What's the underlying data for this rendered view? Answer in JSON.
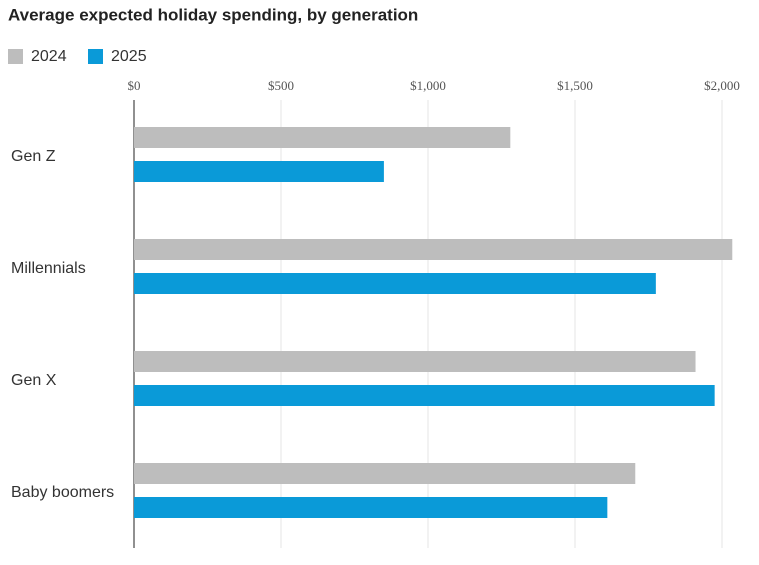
{
  "chart_data": {
    "type": "bar",
    "orientation": "horizontal",
    "title": "Average expected holiday spending, by generation",
    "categories": [
      "Gen Z",
      "Millennials",
      "Gen X",
      "Baby boomers"
    ],
    "series": [
      {
        "name": "2024",
        "color": "#bdbdbd",
        "values": [
          1280,
          2035,
          1910,
          1705
        ]
      },
      {
        "name": "2025",
        "color": "#0a9ad8",
        "values": [
          850,
          1775,
          1975,
          1610
        ]
      }
    ],
    "xlim": [
      0,
      2100
    ],
    "xticks": [
      {
        "value": 0,
        "label": "$0"
      },
      {
        "value": 500,
        "label": "$500"
      },
      {
        "value": 1000,
        "label": "$1,000"
      },
      {
        "value": 1500,
        "label": "$1,500"
      },
      {
        "value": 2000,
        "label": "$2,000"
      }
    ],
    "grid": true
  }
}
